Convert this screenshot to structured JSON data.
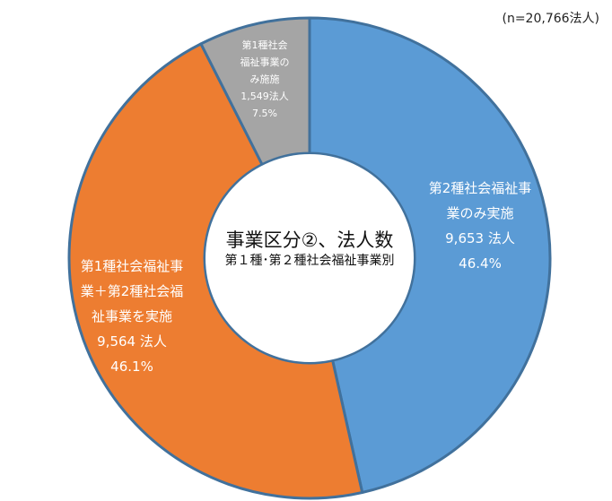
{
  "note": "(n=20,766法人)",
  "center_title": {
    "line1": "事業区分②、法人数",
    "line2": "第１種･第２種社会福祉事業別"
  },
  "chart_data": {
    "type": "pie",
    "variant": "donut",
    "series": [
      {
        "label_lines": [
          "第2種社会福祉事",
          "業のみ実施",
          "9,653 法人",
          "46.4%"
        ],
        "value": 9653,
        "percent": 46.4,
        "color": "#5B9BD5"
      },
      {
        "label_lines": [
          "第1種社会福祉事",
          "業＋第2種社会福",
          "祉事業を実施",
          "9,564 法人",
          "46.1%"
        ],
        "value": 9564,
        "percent": 46.1,
        "color": "#ED7D31"
      },
      {
        "label_lines": [
          "第1種社会",
          "福祉事業の",
          "み施施",
          "1,549法人",
          "7.5%"
        ],
        "value": 1549,
        "percent": 7.5,
        "color": "#A5A5A5"
      }
    ]
  }
}
